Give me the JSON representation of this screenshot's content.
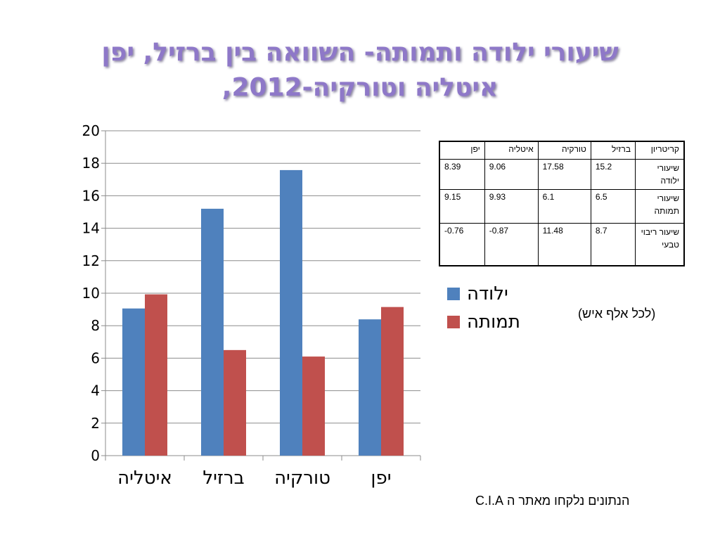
{
  "slide": {
    "title_line1": "שיעורי ילודה ותמותה- השוואה בין ברזיל, יפן",
    "title_line2": "איטליה וטורקיה-2012,",
    "unit_note": "(לכל אלף איש)",
    "source": "הנתונים נלקחו מאתר ה C.I.A"
  },
  "colors": {
    "birth": "#4f81bd",
    "death": "#c0504d",
    "title": "#8e78c8"
  },
  "chart_data": {
    "type": "bar",
    "categories": [
      "איטליה",
      "ברזיל",
      "טורקיה",
      "יפן"
    ],
    "series": [
      {
        "name": "ילודה",
        "values": [
          9.06,
          15.2,
          17.58,
          8.39
        ]
      },
      {
        "name": "תמותה",
        "values": [
          9.93,
          6.5,
          6.1,
          9.15
        ]
      }
    ],
    "ylim": [
      0,
      20
    ],
    "yticks": [
      0,
      2,
      4,
      6,
      8,
      10,
      12,
      14,
      16,
      18,
      20
    ],
    "grid": true,
    "legend_position": "right"
  },
  "table": {
    "headers": [
      "קריטריון",
      "ברזיל",
      "טורקיה",
      "איטליה",
      "יפן"
    ],
    "rows": [
      {
        "criterion": "שיעורי ילודה",
        "values": [
          "15.2",
          "17.58",
          "9.06",
          "8.39"
        ]
      },
      {
        "criterion": "שיעורי תמותה",
        "values": [
          "6.5",
          "6.1",
          "9.93",
          "9.15"
        ]
      },
      {
        "criterion": "שיעור ריבוי טבעי",
        "values": [
          "8.7",
          "11.48",
          "-0.87",
          "-0.76"
        ]
      }
    ]
  }
}
